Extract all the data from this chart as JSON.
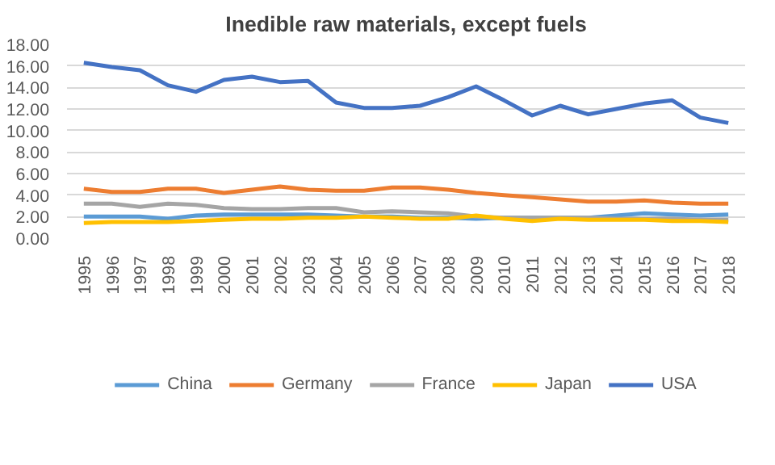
{
  "chart_data": {
    "type": "line",
    "title": "Inedible raw materials, except fuels",
    "categories": [
      "1995",
      "1996",
      "1997",
      "1998",
      "1999",
      "2000",
      "2001",
      "2002",
      "2003",
      "2004",
      "2005",
      "2006",
      "2007",
      "2008",
      "2009",
      "2010",
      "2011",
      "2012",
      "2013",
      "2014",
      "2015",
      "2016",
      "2017",
      "2018"
    ],
    "series": [
      {
        "name": "China",
        "color": "#5b9bd5",
        "values": [
          2.0,
          2.0,
          2.0,
          1.8,
          2.1,
          2.2,
          2.2,
          2.2,
          2.2,
          2.1,
          2.0,
          2.0,
          1.9,
          1.9,
          1.8,
          1.9,
          1.9,
          1.9,
          1.9,
          2.1,
          2.3,
          2.2,
          2.1,
          2.2
        ]
      },
      {
        "name": "Germany",
        "color": "#ed7d31",
        "values": [
          4.6,
          4.3,
          4.3,
          4.6,
          4.6,
          4.2,
          4.5,
          4.8,
          4.5,
          4.4,
          4.4,
          4.7,
          4.7,
          4.5,
          4.2,
          4.0,
          3.8,
          3.6,
          3.4,
          3.4,
          3.5,
          3.3,
          3.2,
          3.2
        ]
      },
      {
        "name": "France",
        "color": "#a5a5a5",
        "values": [
          3.2,
          3.2,
          2.9,
          3.2,
          3.1,
          2.8,
          2.7,
          2.7,
          2.8,
          2.8,
          2.4,
          2.5,
          2.4,
          2.3,
          2.0,
          1.9,
          1.9,
          1.9,
          1.9,
          1.8,
          1.8,
          1.8,
          1.7,
          1.7
        ]
      },
      {
        "name": "Japan",
        "color": "#ffc000",
        "values": [
          1.4,
          1.5,
          1.5,
          1.5,
          1.6,
          1.7,
          1.8,
          1.8,
          1.9,
          1.9,
          2.0,
          1.9,
          1.8,
          1.8,
          2.1,
          1.8,
          1.6,
          1.8,
          1.7,
          1.7,
          1.7,
          1.6,
          1.6,
          1.5
        ]
      },
      {
        "name": "USA",
        "color": "#4472c4",
        "values": [
          16.3,
          15.9,
          15.6,
          14.2,
          13.6,
          14.7,
          15.0,
          14.5,
          14.6,
          12.6,
          12.1,
          12.1,
          12.3,
          13.1,
          14.1,
          12.8,
          11.4,
          12.3,
          11.5,
          12.0,
          12.5,
          12.8,
          11.2,
          10.7
        ]
      }
    ],
    "ylim": [
      0,
      18
    ],
    "yticks": [
      {
        "value": 0,
        "label": "0.00"
      },
      {
        "value": 2,
        "label": "2.00"
      },
      {
        "value": 4,
        "label": "4.00"
      },
      {
        "value": 6,
        "label": "6.00"
      },
      {
        "value": 8,
        "label": "8.00"
      },
      {
        "value": 10,
        "label": "10.00"
      },
      {
        "value": 12,
        "label": "12.00"
      },
      {
        "value": 14,
        "label": "14.00"
      },
      {
        "value": 16,
        "label": "16.00"
      },
      {
        "value": 18,
        "label": "18.00"
      }
    ],
    "grid": "y",
    "legend": "bottom",
    "line_style": "solid"
  }
}
